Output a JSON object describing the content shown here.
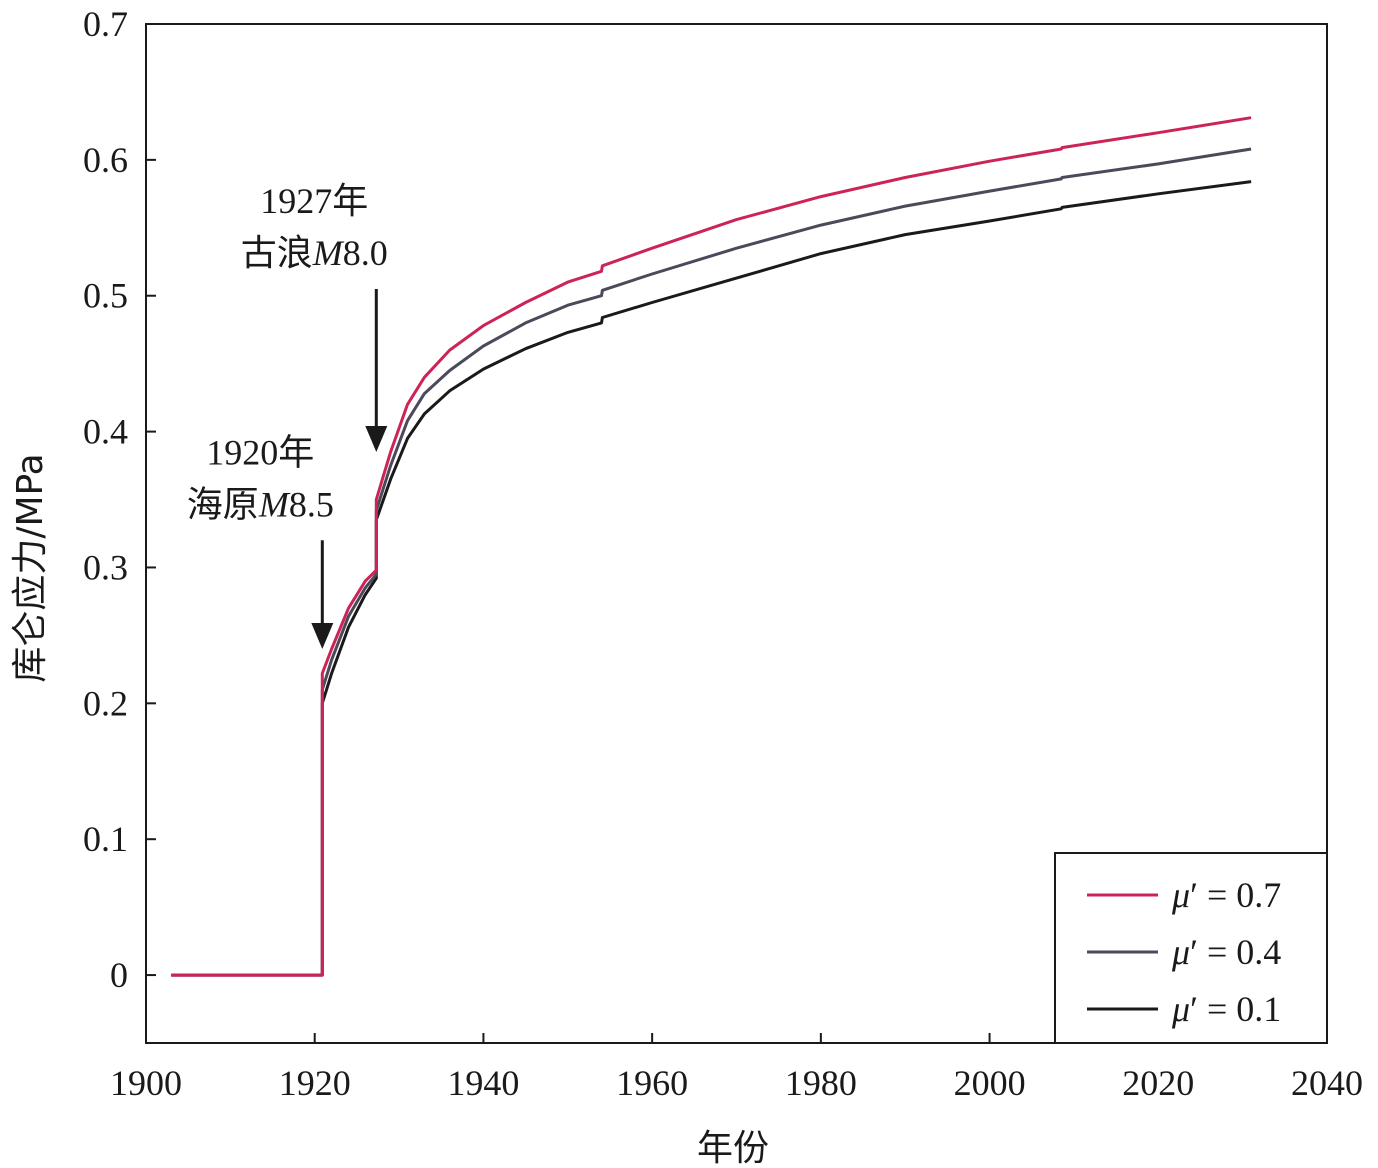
{
  "chart_data": {
    "type": "line",
    "xlabel": "年份",
    "ylabel": "库仑应力/MPa",
    "xlim": [
      1900,
      2040
    ],
    "ylim": [
      -0.05,
      0.7
    ],
    "xticks": [
      1900,
      1920,
      1940,
      1960,
      1980,
      2000,
      2020,
      2040
    ],
    "yticks": [
      0,
      0.1,
      0.2,
      0.3,
      0.4,
      0.5,
      0.6,
      0.7
    ],
    "ytick_labels": [
      "0",
      "0.1",
      "0.2",
      "0.3",
      "0.4",
      "0.5",
      "0.6",
      "0.7"
    ],
    "legend_position": "bottom-right",
    "grid": false,
    "series": [
      {
        "name": "μ′ = 0.7",
        "legend": {
          "symbol": "μ",
          "prime": "′",
          "value": " = 0.7"
        },
        "color": "#cc2456",
        "x": [
          1903,
          1920.9,
          1920.9,
          1922,
          1924,
          1926,
          1927.3,
          1927.3,
          1929,
          1931,
          1933,
          1936,
          1940,
          1945,
          1950,
          1954,
          1954.1,
          1960,
          1970,
          1980,
          1990,
          2000,
          2008.5,
          2008.6,
          2020,
          2031
        ],
        "y": [
          0,
          0,
          0.222,
          0.24,
          0.27,
          0.29,
          0.298,
          0.35,
          0.385,
          0.42,
          0.44,
          0.46,
          0.478,
          0.495,
          0.51,
          0.518,
          0.522,
          0.535,
          0.556,
          0.573,
          0.587,
          0.599,
          0.608,
          0.609,
          0.62,
          0.631
        ]
      },
      {
        "name": "μ′ = 0.4",
        "legend": {
          "symbol": "μ",
          "prime": "′",
          "value": " = 0.4"
        },
        "color": "#4a4a5a",
        "x": [
          1903,
          1920.9,
          1920.9,
          1922,
          1924,
          1926,
          1927.3,
          1927.3,
          1929,
          1931,
          1933,
          1936,
          1940,
          1945,
          1950,
          1954,
          1954.1,
          1960,
          1970,
          1980,
          1990,
          2000,
          2008.5,
          2008.6,
          2020,
          2031
        ],
        "y": [
          0,
          0,
          0.21,
          0.232,
          0.264,
          0.285,
          0.295,
          0.342,
          0.375,
          0.408,
          0.428,
          0.445,
          0.463,
          0.48,
          0.493,
          0.5,
          0.504,
          0.516,
          0.535,
          0.552,
          0.566,
          0.577,
          0.586,
          0.587,
          0.597,
          0.608
        ]
      },
      {
        "name": "μ′ = 0.1",
        "legend": {
          "symbol": "μ",
          "prime": "′",
          "value": " = 0.1"
        },
        "color": "#1a1a1a",
        "x": [
          1903,
          1920.9,
          1920.9,
          1922,
          1924,
          1926,
          1927.3,
          1927.3,
          1929,
          1931,
          1933,
          1936,
          1940,
          1945,
          1950,
          1954,
          1954.1,
          1960,
          1970,
          1980,
          1990,
          2000,
          2008.5,
          2008.6,
          2020,
          2031
        ],
        "y": [
          0,
          0,
          0.2,
          0.222,
          0.256,
          0.28,
          0.292,
          0.335,
          0.365,
          0.395,
          0.413,
          0.43,
          0.446,
          0.461,
          0.473,
          0.48,
          0.484,
          0.495,
          0.513,
          0.531,
          0.545,
          0.555,
          0.564,
          0.565,
          0.575,
          0.584
        ]
      }
    ],
    "annotations": [
      {
        "id": "haiyuan",
        "line1": "1920年",
        "line2_prefix": "海原",
        "line2_mag": "M",
        "line2_suffix": "8.5",
        "arrow_x": 1920.9,
        "arrow_tip_y": 0.24,
        "arrow_tail_y": 0.32
      },
      {
        "id": "gulang",
        "line1": "1927年",
        "line2_prefix": "古浪",
        "line2_mag": "M",
        "line2_suffix": "8.0",
        "arrow_x": 1927.3,
        "arrow_tip_y": 0.385,
        "arrow_tail_y": 0.505
      }
    ]
  }
}
